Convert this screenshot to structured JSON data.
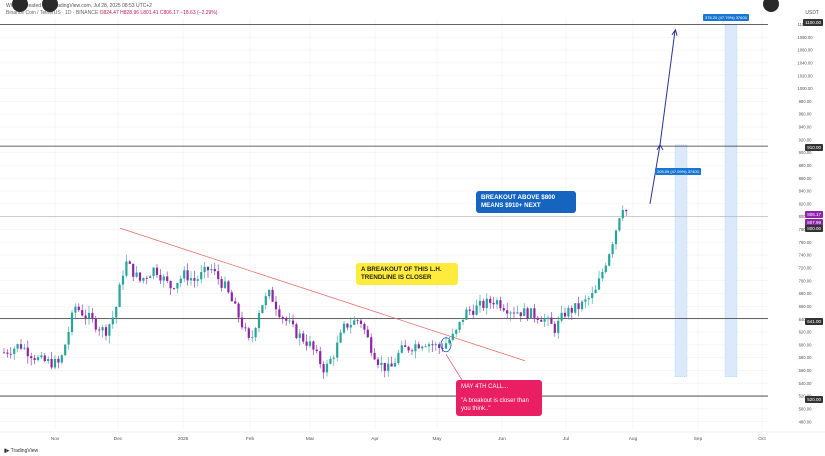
{
  "header": {
    "line1": "WCN… created with TradingView.com, Jul 28, 2025 08:53 UTC+2",
    "line2": "Binance Coin / TetherUS · 1D · BINANCE",
    "ohlc": "O824.47 H828.96 L801.41 C806.17 −18.63 (−2.29%)",
    "currency": "USDT"
  },
  "annotations": {
    "trendline_note": "A BREAKOUT OF THIS L.H. TRENDLINE IS CLOSER",
    "breakout_note": "BREAKOUT ABOVE $800 MEANS $910+ NEXT ",
    "may_call_title": "MAY 4TH CALL...",
    "may_call_quote": "\"A breakout is closer than you think..\"",
    "target_box_upper": "376.20 (47.79%) 37600",
    "target_box_lower": "205.09 (47.99%) 37400"
  },
  "price_tags": {
    "current": "806.17",
    "current_alt": "807.99",
    "level_800": "800.00",
    "level_910": "910.00",
    "level_1100": "1100.00",
    "level_641": "641.00",
    "level_520": "520.00"
  },
  "colors": {
    "up_candle": "#26a69a",
    "down_candle": "#8e24aa",
    "trendline": "#e57373",
    "arrow": "#283593",
    "callout_yellow": "#ffeb3b",
    "callout_blue": "#1565c0",
    "callout_pink": "#e91e63",
    "target_fill": "#dbe9fb"
  },
  "watermark": "TradingView",
  "chart_data": {
    "type": "candlestick",
    "title": "Binance Coin / TetherUS · 1D · BINANCE",
    "xlabel": "",
    "ylabel": "",
    "ylim": [
      467,
      1110
    ],
    "grid": true,
    "x_ticks": [
      "Nov",
      "Dec",
      "2025",
      "Feb",
      "Mar",
      "Apr",
      "May",
      "Jun",
      "Jul",
      "Aug",
      "Sep",
      "Oct"
    ],
    "y_ticks": [
      480,
      500,
      520,
      540,
      560,
      580,
      600,
      620,
      640,
      660,
      680,
      700,
      720,
      740,
      760,
      780,
      800,
      820,
      840,
      860,
      880,
      900,
      920,
      940,
      960,
      980,
      1000,
      1020,
      1040,
      1060,
      1080,
      1100
    ],
    "price_path": [
      [
        0,
        585
      ],
      [
        20,
        600
      ],
      [
        40,
        575
      ],
      [
        60,
        570
      ],
      [
        75,
        660
      ],
      [
        90,
        640
      ],
      [
        105,
        620
      ],
      [
        115,
        650
      ],
      [
        125,
        730
      ],
      [
        140,
        700
      ],
      [
        155,
        720
      ],
      [
        170,
        690
      ],
      [
        185,
        710
      ],
      [
        195,
        700
      ],
      [
        210,
        720
      ],
      [
        225,
        690
      ],
      [
        240,
        640
      ],
      [
        250,
        600
      ],
      [
        260,
        660
      ],
      [
        270,
        680
      ],
      [
        280,
        650
      ],
      [
        295,
        620
      ],
      [
        310,
        600
      ],
      [
        325,
        560
      ],
      [
        335,
        590
      ],
      [
        345,
        630
      ],
      [
        360,
        640
      ],
      [
        370,
        600
      ],
      [
        380,
        570
      ],
      [
        390,
        560
      ],
      [
        400,
        590
      ],
      [
        415,
        600
      ],
      [
        425,
        605
      ],
      [
        440,
        595
      ],
      [
        455,
        615
      ],
      [
        465,
        650
      ],
      [
        480,
        660
      ],
      [
        495,
        670
      ],
      [
        510,
        655
      ],
      [
        525,
        650
      ],
      [
        540,
        645
      ],
      [
        555,
        625
      ],
      [
        565,
        650
      ],
      [
        580,
        660
      ],
      [
        595,
        680
      ],
      [
        608,
        740
      ],
      [
        615,
        775
      ],
      [
        622,
        820
      ],
      [
        627,
        806
      ]
    ],
    "horizontal_levels": [
      1100,
      910,
      800,
      641,
      520
    ],
    "trendline": [
      [
        120,
        782
      ],
      [
        525,
        575
      ]
    ],
    "projection_arrow": [
      [
        650,
        820
      ],
      [
        660,
        912
      ],
      [
        675,
        1090
      ]
    ],
    "target_zones": [
      [
        675,
        740,
        912
      ],
      [
        725,
        740,
        1100
      ]
    ],
    "series": [
      {
        "values": []
      }
    ]
  }
}
